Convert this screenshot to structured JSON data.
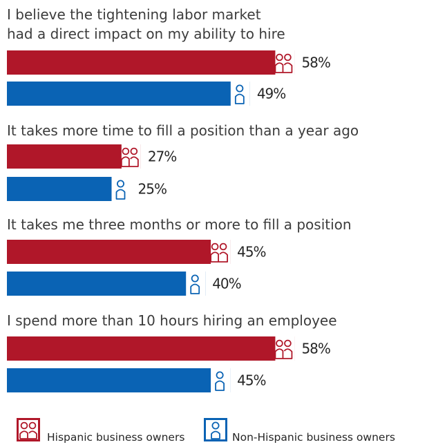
{
  "chart_data": {
    "type": "bar",
    "orientation": "horizontal",
    "categories": [
      [
        "I believe the tightening labor market",
        "had a direct impact on my ability to hire"
      ],
      [
        "It takes more time to fill a position than a year ago"
      ],
      [
        "It takes me three months or more to fill a position"
      ],
      [
        "I spend more than 10 hours hiring an employee"
      ]
    ],
    "series": [
      {
        "name": "Hispanic business owners",
        "color": "#b01729",
        "icon": "two-people-icon",
        "values": [
          58,
          27,
          45,
          58
        ],
        "labels": [
          "58%",
          "27%",
          "45%",
          "58%"
        ]
      },
      {
        "name": "Non-Hispanic business owners",
        "color": "#0a63b4",
        "icon": "person-icon",
        "values": [
          49,
          25,
          40,
          45
        ],
        "labels": [
          "49%",
          "25%",
          "40%",
          "45%"
        ]
      }
    ],
    "xlim": [
      0,
      100
    ],
    "grid": false,
    "legend": "bottom"
  }
}
